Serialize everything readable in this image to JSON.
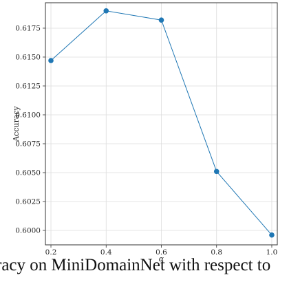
{
  "caption": "racy on MiniDomainNet with respect to",
  "chart_data": {
    "type": "line",
    "xlabel": "α",
    "ylabel": "Accuracy",
    "x": [
      0.2,
      0.4,
      0.6,
      0.8,
      1.0
    ],
    "series": [
      {
        "values": [
          0.6147,
          0.619,
          0.6182,
          0.6051,
          0.5996
        ],
        "color": "#1f77b4"
      }
    ],
    "xlim": [
      0.18,
      1.02
    ],
    "ylim": [
      0.59875,
      0.6197
    ],
    "xticks": [
      "0.2",
      "0.4",
      "0.6",
      "0.8",
      "1.0"
    ],
    "yticks": [
      "0.6000",
      "0.6025",
      "0.6050",
      "0.6075",
      "0.6100",
      "0.6125",
      "0.6150",
      "0.6175"
    ],
    "grid": true,
    "legend": "none"
  }
}
